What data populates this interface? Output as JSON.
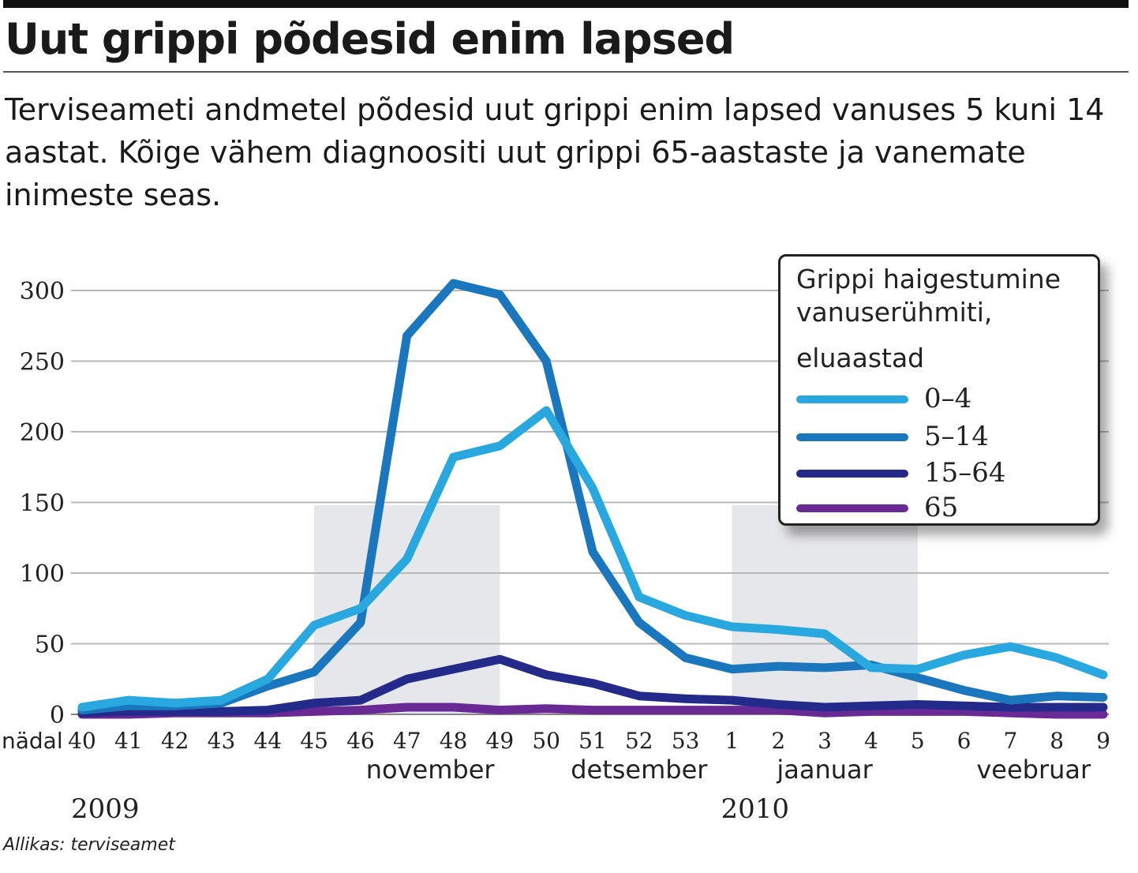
{
  "headline": "Uut grippi põdesid enim lapsed",
  "lede": "Terviseameti andmetel põdesid uut grippi enim lapsed vanuses 5 kuni 14 aastat. Kõige vähem diagnoositi uut grippi 65-aastaste ja vanemate inimeste seas.",
  "source": "Allikas: terviseamet",
  "legend": {
    "title": "Grippi haigestumine vanuserühmiti,",
    "subtitle": "eluaastad"
  },
  "chart_data": {
    "type": "line",
    "title": "Grippi haigestumine vanuserühmiti, eluaastad",
    "xlabel": "nädal",
    "ylabel": "",
    "ylim": [
      0,
      310
    ],
    "yticks": [
      0,
      50,
      100,
      150,
      200,
      250,
      300
    ],
    "categories": [
      "40",
      "41",
      "42",
      "43",
      "44",
      "45",
      "46",
      "47",
      "48",
      "49",
      "50",
      "51",
      "52",
      "53",
      "1",
      "2",
      "3",
      "4",
      "5",
      "6",
      "7",
      "8",
      "9"
    ],
    "months": [
      {
        "label": "november",
        "center_week": "47.5"
      },
      {
        "label": "detsember",
        "center_week": "52"
      },
      {
        "label": "jaanuar",
        "center_week": "3"
      },
      {
        "label": "veebruar",
        "center_week": "7.5"
      }
    ],
    "years": [
      {
        "label": "2009",
        "at_week": "40"
      },
      {
        "label": "2010",
        "at_week": "1"
      }
    ],
    "shaded_weeks": [
      [
        "45",
        "49"
      ],
      [
        "1",
        "5"
      ]
    ],
    "grid": true,
    "legend_position": "top-right",
    "series": [
      {
        "name": "0–4",
        "color": "#29a8e0",
        "values": [
          5,
          10,
          8,
          10,
          25,
          63,
          75,
          110,
          182,
          190,
          215,
          160,
          83,
          70,
          62,
          60,
          57,
          33,
          32,
          42,
          48,
          40,
          28
        ]
      },
      {
        "name": "5–14",
        "color": "#1b77bd",
        "values": [
          3,
          6,
          6,
          8,
          20,
          30,
          65,
          268,
          305,
          297,
          250,
          115,
          65,
          40,
          32,
          34,
          33,
          35,
          26,
          17,
          10,
          13,
          12
        ]
      },
      {
        "name": "15–64",
        "color": "#232a8a",
        "values": [
          1,
          2,
          2,
          2,
          3,
          8,
          10,
          25,
          32,
          39,
          28,
          22,
          13,
          11,
          10,
          7,
          5,
          6,
          7,
          6,
          5,
          5,
          5
        ]
      },
      {
        "name": "65",
        "color": "#6a2a96",
        "values": [
          0,
          0,
          1,
          1,
          1,
          2,
          3,
          5,
          5,
          3,
          4,
          3,
          3,
          3,
          3,
          3,
          1,
          2,
          2,
          2,
          1,
          0,
          0
        ]
      }
    ]
  }
}
